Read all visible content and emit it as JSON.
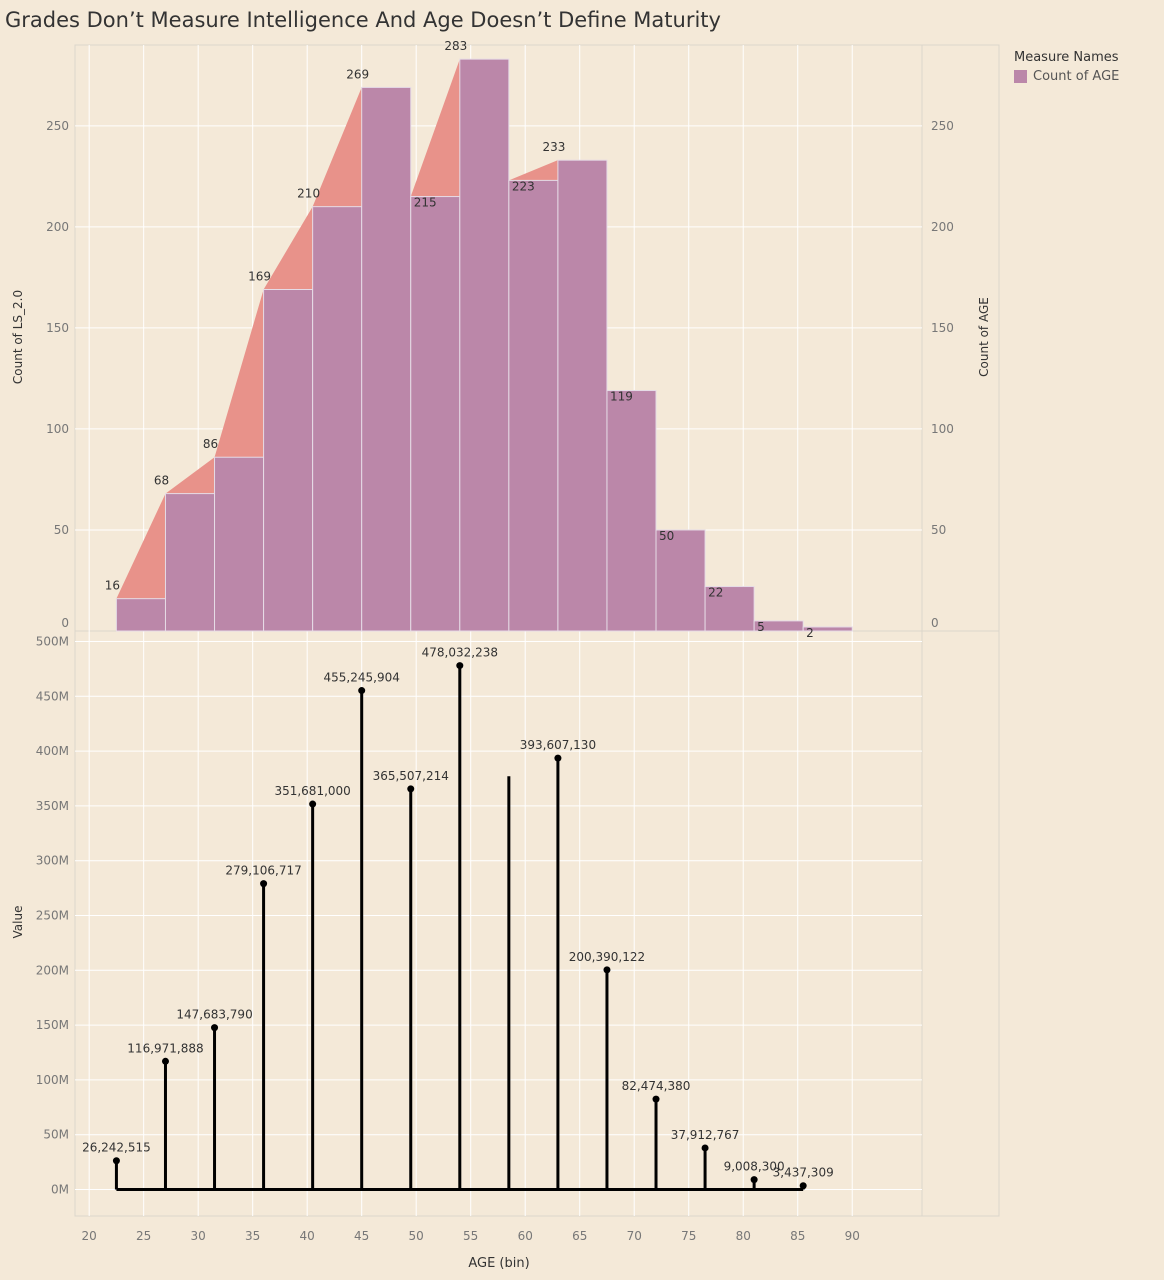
{
  "title": "Grades Don’t Measure Intelligence And Age Doesn’t Define Maturity",
  "legend": {
    "title": "Measure Names",
    "items": [
      "Count of AGE"
    ]
  },
  "colors": {
    "background": "#f4e9d8",
    "bar": "#bb87a9",
    "area": "#e8928a",
    "lollipop": "#000000",
    "grid": "#ffffff"
  },
  "chart_data": [
    {
      "type": "bar",
      "ylabel_left": "Count of LS_2.0",
      "ylabel_right": "Count of AGE",
      "ylim": [
        0,
        290
      ],
      "y_ticks": [
        0,
        50,
        100,
        150,
        200,
        250
      ],
      "y_tick_labels": [
        "0",
        "50",
        "100",
        "150",
        "200",
        "250"
      ],
      "x_bin_starts": [
        22.5,
        27,
        31.5,
        36,
        40.5,
        45,
        49.5,
        54,
        58.5,
        63,
        67.5,
        72,
        76.5,
        81,
        85.5
      ],
      "bin_width": 4.5,
      "series": [
        {
          "name": "Count of LS_2.0",
          "type": "area",
          "values": [
            16,
            68,
            86,
            169,
            210,
            269,
            215,
            283,
            223,
            233,
            119,
            50,
            22,
            5,
            2
          ]
        },
        {
          "name": "Count of AGE",
          "type": "bar",
          "values": [
            16,
            68,
            86,
            169,
            210,
            269,
            215,
            283,
            223,
            233,
            119,
            50,
            22,
            5,
            2
          ]
        }
      ],
      "data_labels": [
        "16",
        "68",
        "86",
        "169",
        "210",
        "269",
        "215",
        "283",
        "223",
        "233",
        "119",
        "50",
        "22",
        "5",
        "2"
      ]
    },
    {
      "type": "lollipop",
      "ylabel": "Value",
      "xlabel": "AGE (bin)",
      "ylim": [
        0,
        500000000
      ],
      "y_ticks": [
        0,
        50000000,
        100000000,
        150000000,
        200000000,
        250000000,
        300000000,
        350000000,
        400000000,
        450000000,
        500000000
      ],
      "y_tick_labels": [
        "0M",
        "50M",
        "100M",
        "150M",
        "200M",
        "250M",
        "300M",
        "350M",
        "400M",
        "450M",
        "500M"
      ],
      "x_ticks": [
        20,
        25,
        30,
        35,
        40,
        45,
        50,
        55,
        60,
        65,
        70,
        75,
        80,
        85,
        90
      ],
      "x_tick_labels": [
        "20",
        "25",
        "30",
        "35",
        "40",
        "45",
        "50",
        "55",
        "60",
        "65",
        "70",
        "75",
        "80",
        "85",
        "90"
      ],
      "xlim": [
        18.7,
        96.4
      ],
      "x": [
        22.5,
        27,
        31.5,
        36,
        40.5,
        45,
        49.5,
        54,
        58.5,
        63,
        67.5,
        72,
        76.5,
        81,
        85.5
      ],
      "values": [
        26242515,
        116971888,
        147683790,
        279106717,
        351681000,
        455245904,
        365507214,
        478032238,
        377000000,
        393607130,
        200390122,
        82474380,
        37912767,
        9008300,
        3437309
      ],
      "labels": [
        "26,242,515",
        "116,971,888",
        "147,683,790",
        "279,106,717",
        "351,681,000",
        "455,245,904",
        "365,507,214",
        "478,032,238",
        "",
        "393,607,130",
        "200,390,122",
        "82,474,380",
        "37,912,767",
        "9,008,300",
        "3,437,309"
      ]
    }
  ]
}
